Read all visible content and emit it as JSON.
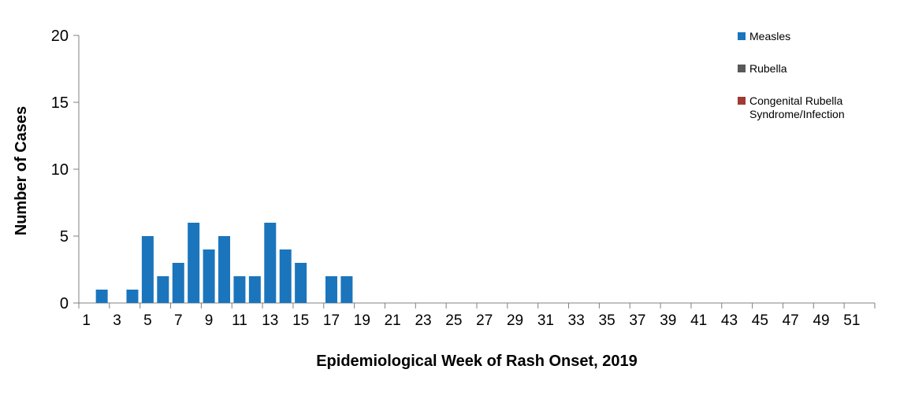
{
  "chart_data": {
    "type": "bar",
    "title": "",
    "xlabel": "Epidemiological Week of Rash Onset, 2019",
    "ylabel": "Number of Cases",
    "ylim": [
      0,
      20
    ],
    "ytick_step": 5,
    "xtick_label_interval": 2,
    "grid": false,
    "legend_position": "top-right",
    "categories": [
      1,
      2,
      3,
      4,
      5,
      6,
      7,
      8,
      9,
      10,
      11,
      12,
      13,
      14,
      15,
      16,
      17,
      18,
      19,
      20,
      21,
      22,
      23,
      24,
      25,
      26,
      27,
      28,
      29,
      30,
      31,
      32,
      33,
      34,
      35,
      36,
      37,
      38,
      39,
      40,
      41,
      42,
      43,
      44,
      45,
      46,
      47,
      48,
      49,
      50,
      51,
      52
    ],
    "series": [
      {
        "name": "Measles",
        "color": "#1b75bc",
        "values": [
          0,
          1,
          0,
          1,
          5,
          2,
          3,
          6,
          4,
          5,
          2,
          2,
          6,
          4,
          3,
          0,
          2,
          2,
          0,
          0,
          0,
          0,
          0,
          0,
          0,
          0,
          0,
          0,
          0,
          0,
          0,
          0,
          0,
          0,
          0,
          0,
          0,
          0,
          0,
          0,
          0,
          0,
          0,
          0,
          0,
          0,
          0,
          0,
          0,
          0,
          0,
          0
        ]
      },
      {
        "name": "Rubella",
        "color": "#595959",
        "values": [
          0,
          0,
          0,
          0,
          0,
          0,
          0,
          0,
          0,
          0,
          0,
          0,
          0,
          0,
          0,
          0,
          0,
          0,
          0,
          0,
          0,
          0,
          0,
          0,
          0,
          0,
          0,
          0,
          0,
          0,
          0,
          0,
          0,
          0,
          0,
          0,
          0,
          0,
          0,
          0,
          0,
          0,
          0,
          0,
          0,
          0,
          0,
          0,
          0,
          0,
          0,
          0
        ]
      },
      {
        "name": "Congenital Rubella Syndrome/Infection",
        "color": "#9e3b33",
        "values": [
          0,
          0,
          0,
          0,
          0,
          0,
          0,
          0,
          0,
          0,
          0,
          0,
          0,
          0,
          0,
          0,
          0,
          0,
          0,
          0,
          0,
          0,
          0,
          0,
          0,
          0,
          0,
          0,
          0,
          0,
          0,
          0,
          0,
          0,
          0,
          0,
          0,
          0,
          0,
          0,
          0,
          0,
          0,
          0,
          0,
          0,
          0,
          0,
          0,
          0,
          0,
          0
        ]
      }
    ],
    "legend": [
      {
        "label": "Measles",
        "color": "#1b75bc"
      },
      {
        "label": "Rubella",
        "color": "#595959"
      },
      {
        "label": "Congenital Rubella Syndrome/Infection",
        "color": "#9e3b33"
      }
    ]
  },
  "colors": {
    "axis": "#808080",
    "text": "#000000",
    "background": "#ffffff"
  }
}
